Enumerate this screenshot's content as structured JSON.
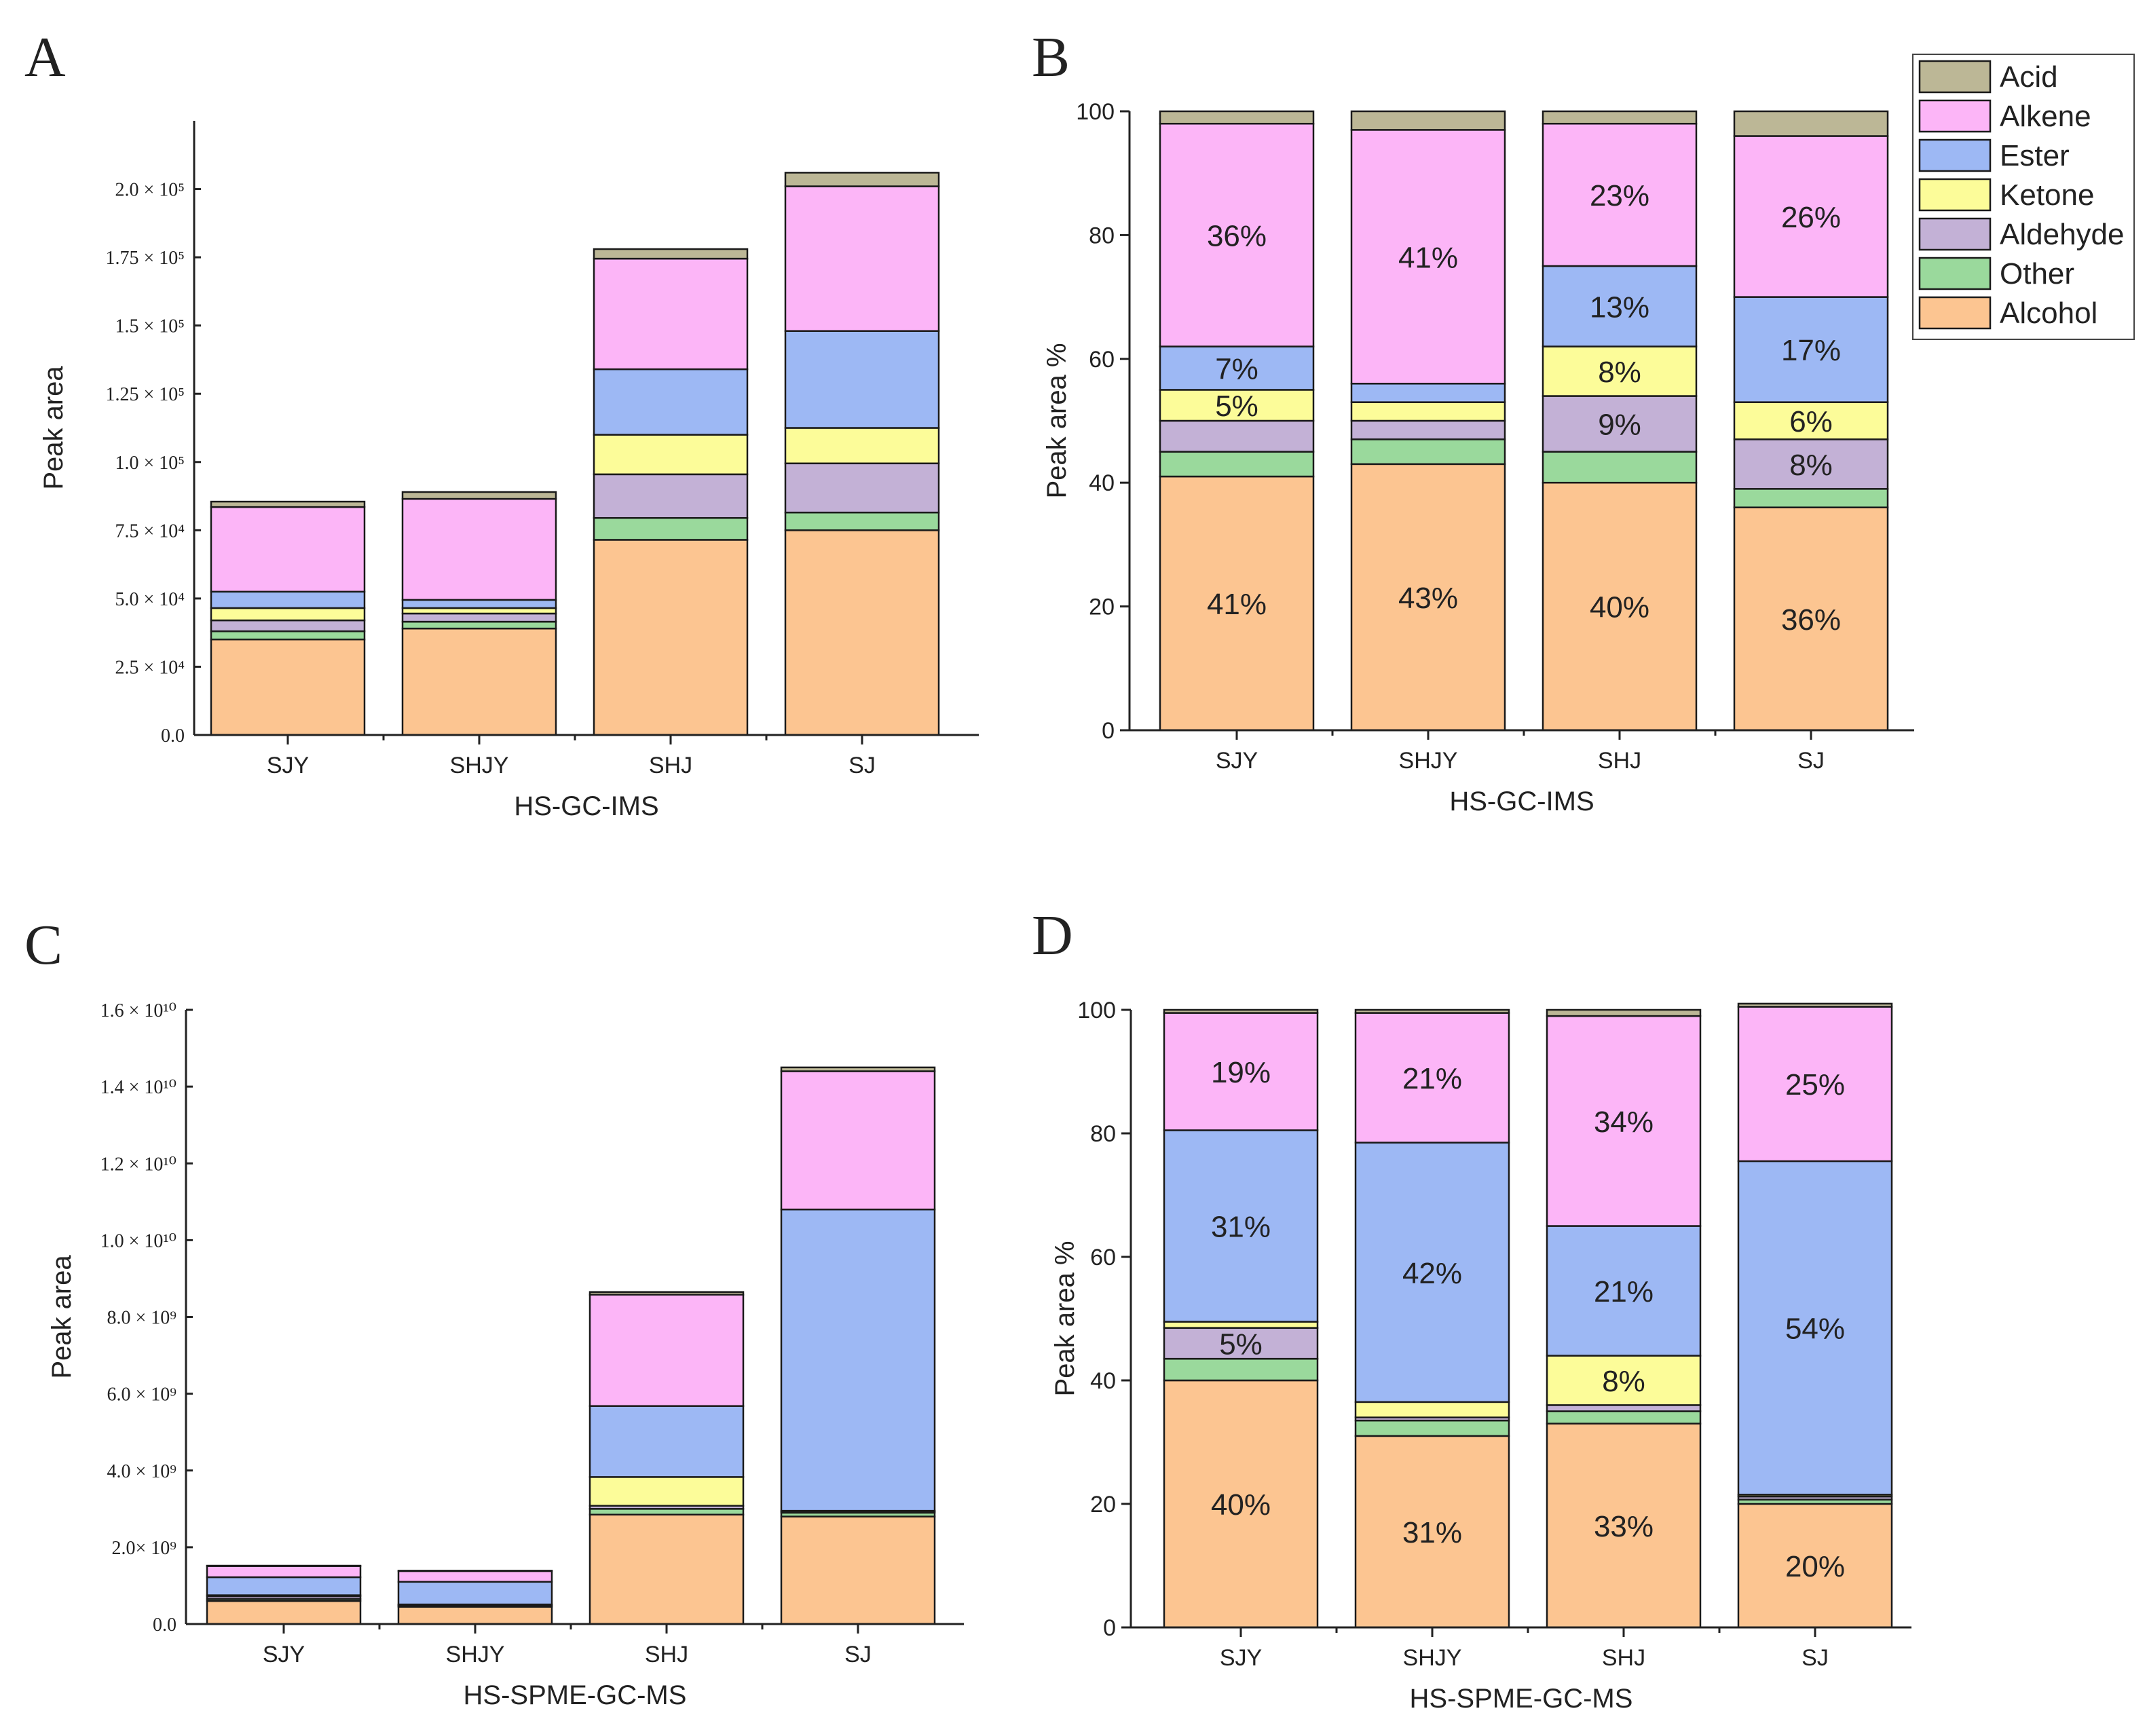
{
  "colors": {
    "Acid": "#bcb796",
    "Alkene": "#fcb5f7",
    "Ester": "#9db8f4",
    "Ketone": "#fcfc99",
    "Aldehyde": "#c3b1d6",
    "Other": "#9ad99c",
    "Alcohol": "#fcc591"
  },
  "legend": {
    "items": [
      "Acid",
      "Alkene",
      "Ester",
      "Ketone",
      "Aldehyde",
      "Other",
      "Alcohol"
    ]
  },
  "chart_data": [
    {
      "panel": "A",
      "type": "bar",
      "stacked": true,
      "xlabel": "HS-GC-IMS",
      "ylabel": "Peak area",
      "categories": [
        "SJY",
        "SHJY",
        "SHJ",
        "SJ"
      ],
      "ylim": [
        0,
        225000
      ],
      "yticks": [
        {
          "value": 0,
          "label": "0.0"
        },
        {
          "value": 25000,
          "label": "2.5 × 10⁴"
        },
        {
          "value": 50000,
          "label": "5.0 × 10⁴"
        },
        {
          "value": 75000,
          "label": "7.5 × 10⁴"
        },
        {
          "value": 100000,
          "label": "1.0 × 10⁵"
        },
        {
          "value": 125000,
          "label": "1.25 × 10⁵"
        },
        {
          "value": 150000,
          "label": "1.5 × 10⁵"
        },
        {
          "value": 175000,
          "label": "1.75 × 10⁵"
        },
        {
          "value": 200000,
          "label": "2.0 × 10⁵"
        }
      ],
      "series": [
        {
          "name": "Alcohol",
          "values": [
            35000,
            39000,
            71500,
            75000
          ]
        },
        {
          "name": "Other",
          "values": [
            3000,
            2500,
            8000,
            6500
          ]
        },
        {
          "name": "Aldehyde",
          "values": [
            4000,
            3000,
            16000,
            18000
          ]
        },
        {
          "name": "Ketone",
          "values": [
            4500,
            2000,
            14500,
            13000
          ]
        },
        {
          "name": "Ester",
          "values": [
            6000,
            3000,
            24000,
            35500
          ]
        },
        {
          "name": "Alkene",
          "values": [
            31000,
            37000,
            40500,
            53000
          ]
        },
        {
          "name": "Acid",
          "values": [
            2000,
            2500,
            3500,
            5000
          ]
        }
      ],
      "segment_labels": {}
    },
    {
      "panel": "B",
      "type": "bar",
      "stacked": true,
      "xlabel": "HS-GC-IMS",
      "ylabel": "Peak area %",
      "categories": [
        "SJY",
        "SHJY",
        "SHJ",
        "SJ"
      ],
      "ylim": [
        0,
        100
      ],
      "yticks": [
        {
          "value": 0,
          "label": "0"
        },
        {
          "value": 20,
          "label": "20"
        },
        {
          "value": 40,
          "label": "40"
        },
        {
          "value": 60,
          "label": "60"
        },
        {
          "value": 80,
          "label": "80"
        },
        {
          "value": 100,
          "label": "100"
        }
      ],
      "series": [
        {
          "name": "Alcohol",
          "values": [
            41,
            43,
            40,
            36
          ]
        },
        {
          "name": "Other",
          "values": [
            4,
            4,
            5,
            3
          ]
        },
        {
          "name": "Aldehyde",
          "values": [
            5,
            3,
            9,
            8
          ]
        },
        {
          "name": "Ketone",
          "values": [
            5,
            3,
            8,
            6
          ]
        },
        {
          "name": "Ester",
          "values": [
            7,
            3,
            13,
            17
          ]
        },
        {
          "name": "Alkene",
          "values": [
            36,
            41,
            23,
            26
          ]
        },
        {
          "name": "Acid",
          "values": [
            2,
            3,
            2,
            4
          ]
        }
      ],
      "segment_labels": {
        "Alcohol": [
          "41%",
          "43%",
          "40%",
          "36%"
        ],
        "Aldehyde": [
          "",
          "",
          "9%",
          "8%"
        ],
        "Ketone": [
          "5%",
          "",
          "8%",
          "6%"
        ],
        "Ester": [
          "7%",
          "",
          "13%",
          "17%"
        ],
        "Alkene": [
          "36%",
          "41%",
          "23%",
          "26%"
        ]
      }
    },
    {
      "panel": "C",
      "type": "bar",
      "stacked": true,
      "xlabel": "HS-SPME-GC-MS",
      "ylabel": "Peak area",
      "categories": [
        "SJY",
        "SHJY",
        "SHJ",
        "SJ"
      ],
      "ylim": [
        0,
        16000000000
      ],
      "yticks": [
        {
          "value": 0,
          "label": "0.0"
        },
        {
          "value": 2000000000,
          "label": "2.0× 10⁹"
        },
        {
          "value": 4000000000,
          "label": "4.0 × 10⁹"
        },
        {
          "value": 6000000000,
          "label": "6.0 × 10⁹"
        },
        {
          "value": 8000000000,
          "label": "8.0 × 10⁹"
        },
        {
          "value": 10000000000,
          "label": "1.0 × 10¹⁰"
        },
        {
          "value": 12000000000,
          "label": "1.2 × 10¹⁰"
        },
        {
          "value": 14000000000,
          "label": "1.4 × 10¹⁰"
        },
        {
          "value": 16000000000,
          "label": "1.6 × 10¹⁰"
        }
      ],
      "series": [
        {
          "name": "Alcohol",
          "values": [
            600000000,
            450000000,
            2850000000,
            2800000000
          ]
        },
        {
          "name": "Other",
          "values": [
            50000000,
            20000000,
            150000000,
            100000000
          ]
        },
        {
          "name": "Aldehyde",
          "values": [
            70000000,
            30000000,
            80000000,
            30000000
          ]
        },
        {
          "name": "Ketone",
          "values": [
            30000000,
            10000000,
            750000000,
            20000000
          ]
        },
        {
          "name": "Ester",
          "values": [
            470000000,
            590000000,
            1850000000,
            7850000000
          ]
        },
        {
          "name": "Alkene",
          "values": [
            290000000,
            280000000,
            2900000000,
            3600000000
          ]
        },
        {
          "name": "Acid",
          "values": [
            10000000,
            10000000,
            70000000,
            100000000
          ]
        }
      ],
      "segment_labels": {}
    },
    {
      "panel": "D",
      "type": "bar",
      "stacked": true,
      "xlabel": "HS-SPME-GC-MS",
      "ylabel": "Peak area %",
      "categories": [
        "SJY",
        "SHJY",
        "SHJ",
        "SJ"
      ],
      "ylim": [
        0,
        100
      ],
      "yticks": [
        {
          "value": 0,
          "label": "0"
        },
        {
          "value": 20,
          "label": "20"
        },
        {
          "value": 40,
          "label": "40"
        },
        {
          "value": 60,
          "label": "60"
        },
        {
          "value": 80,
          "label": "80"
        },
        {
          "value": 100,
          "label": "100"
        }
      ],
      "series": [
        {
          "name": "Alcohol",
          "values": [
            40,
            31,
            33,
            20
          ]
        },
        {
          "name": "Other",
          "values": [
            3.5,
            2.5,
            2,
            0.7
          ]
        },
        {
          "name": "Aldehyde",
          "values": [
            5,
            0.5,
            1,
            0.5
          ]
        },
        {
          "name": "Ketone",
          "values": [
            1,
            2.5,
            8,
            0.3
          ]
        },
        {
          "name": "Ester",
          "values": [
            31,
            42,
            21,
            54
          ]
        },
        {
          "name": "Alkene",
          "values": [
            19,
            21,
            34,
            25
          ]
        },
        {
          "name": "Acid",
          "values": [
            0.5,
            0.5,
            1,
            0.5
          ]
        }
      ],
      "segment_labels": {
        "Alcohol": [
          "40%",
          "31%",
          "33%",
          "20%"
        ],
        "Aldehyde": [
          "5%",
          "",
          "",
          ""
        ],
        "Ketone": [
          "",
          "",
          "8%",
          ""
        ],
        "Ester": [
          "31%",
          "42%",
          "21%",
          "54%"
        ],
        "Alkene": [
          "19%",
          "21%",
          "34%",
          "25%"
        ]
      }
    }
  ]
}
